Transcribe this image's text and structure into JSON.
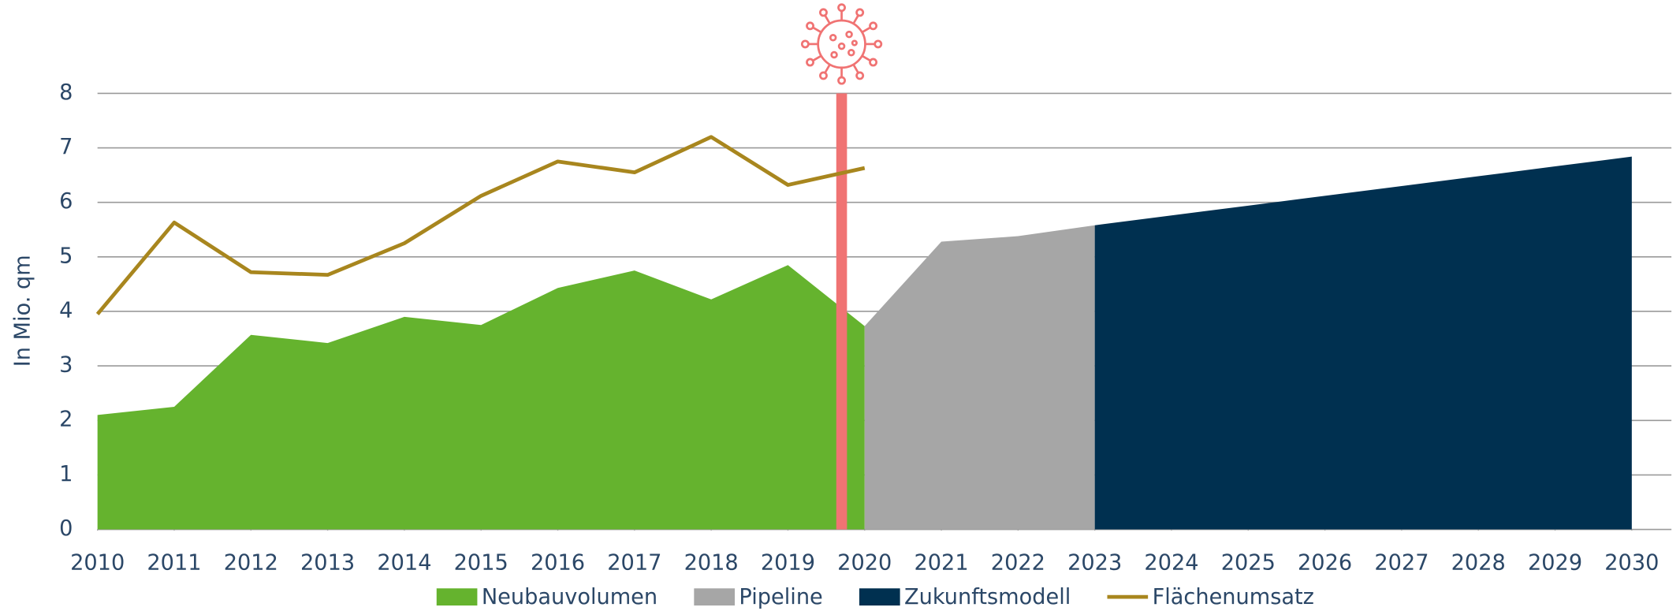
{
  "chart_data": {
    "type": "area",
    "y_label": "In Mio. qm",
    "xlim": [
      2010,
      2030
    ],
    "xticks": [
      2010,
      2011,
      2012,
      2013,
      2014,
      2015,
      2016,
      2017,
      2018,
      2019,
      2020,
      2021,
      2022,
      2023,
      2024,
      2025,
      2026,
      2027,
      2028,
      2029,
      2030
    ],
    "ylim": [
      0,
      8
    ],
    "yticks": [
      0,
      1,
      2,
      3,
      4,
      5,
      6,
      7,
      8
    ],
    "grid": true,
    "legend": "bottom",
    "series": [
      {
        "name": "Neubauvolumen",
        "type": "area",
        "color": "#65b32e",
        "x": [
          2010,
          2011,
          2012,
          2013,
          2014,
          2015,
          2016,
          2017,
          2018,
          2019,
          2020
        ],
        "values": [
          2.1,
          2.25,
          3.57,
          3.42,
          3.9,
          3.75,
          4.43,
          4.75,
          4.22,
          4.85,
          3.73
        ]
      },
      {
        "name": "Pipeline",
        "type": "area",
        "color": "#a6a6a6",
        "x": [
          2020,
          2021,
          2022,
          2023
        ],
        "values": [
          3.73,
          5.28,
          5.38,
          5.58
        ]
      },
      {
        "name": "Zukunftsmodell",
        "type": "area",
        "color": "#003050",
        "x": [
          2023,
          2024,
          2025,
          2026,
          2027,
          2028,
          2029,
          2030
        ],
        "values": [
          5.58,
          5.76,
          5.94,
          6.12,
          6.3,
          6.48,
          6.66,
          6.84
        ]
      },
      {
        "name": "Flächenumsatz",
        "type": "line",
        "color": "#a8861e",
        "x": [
          2010,
          2011,
          2012,
          2013,
          2014,
          2015,
          2016,
          2017,
          2018,
          2019,
          2020
        ],
        "values": [
          3.95,
          5.63,
          4.72,
          4.67,
          5.25,
          6.12,
          6.75,
          6.55,
          7.2,
          6.32,
          6.63
        ]
      }
    ],
    "marker": {
      "x": 2019.7,
      "color": "#f07373"
    }
  }
}
